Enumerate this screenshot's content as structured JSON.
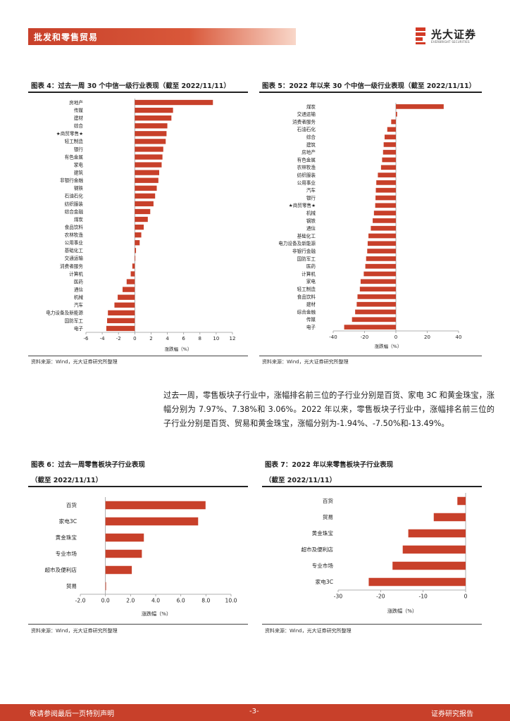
{
  "header": {
    "section_title": "批发和零售贸易",
    "logo_name": "光大证券",
    "logo_sub": "EVERBRIGHT SECURITIES"
  },
  "colors": {
    "accent": "#c8402a",
    "bar": "#c8402a",
    "text": "#222222"
  },
  "fig4": {
    "title": "图表 4：过去一周 30 个中信一级行业表现（截至 2022/11/11）",
    "source": "资料来源：Wind，光大证券研究所整理"
  },
  "fig5": {
    "title": "图表 5：2022 年以来 30 个中信一级行业表现（截至 2022/11/11）",
    "source": "资料来源：Wind，光大证券研究所整理"
  },
  "fig6": {
    "title": "图表 6：过去一周零售板块子行业表现",
    "subtitle": "（截至 2022/11/11）",
    "source": "资料来源：Wind，光大证券研究所整理"
  },
  "fig7": {
    "title": "图表 7：2022 年以来零售板块子行业表现",
    "subtitle": "（截至 2022/11/11）",
    "source": "资料来源：Wind，光大证券研究所整理"
  },
  "body": {
    "paragraph": "过去一周，零售板块子行业中，涨幅排名前三位的子行业分别是百货、家电 3C 和黄金珠宝，涨幅分别为 7.97%、7.38%和 3.06%。2022 年以来，零售板块子行业中，涨幅排名前三位的子行业分别是百货、贸易和黄金珠宝，涨幅分别为-1.94%、-7.50%和-13.49%。"
  },
  "footer": {
    "disclaimer": "敬请参阅最后一页特别声明",
    "page": "-3-",
    "report_type": "证券研究报告"
  },
  "chart_data": [
    {
      "type": "bar",
      "orientation": "horizontal",
      "title": "过去一周 30 个中信一级行业表现",
      "xlabel": "涨跌幅（%）",
      "xlim": [
        -6,
        12
      ],
      "ticks": [
        -6,
        -4,
        -2,
        0,
        2,
        4,
        6,
        8,
        10,
        12
      ],
      "tick_labels": [
        "-6",
        "-4",
        "-2",
        "0",
        "2",
        "4",
        "6",
        "8",
        "10",
        "12"
      ],
      "categories": [
        "房地产",
        "传媒",
        "建材",
        "综合",
        "★商贸零售★",
        "轻工制造",
        "银行",
        "有色金属",
        "家电",
        "建筑",
        "非银行金融",
        "钢铁",
        "石油石化",
        "纺织服装",
        "综合金融",
        "煤炭",
        "食品饮料",
        "农林牧渔",
        "公用事业",
        "基础化工",
        "交通运输",
        "消费者服务",
        "计算机",
        "医药",
        "通信",
        "机械",
        "汽车",
        "电力设备及新能源",
        "国防军工",
        "电子"
      ],
      "values": [
        9.6,
        4.7,
        4.5,
        4.0,
        3.9,
        3.8,
        3.5,
        3.4,
        3.3,
        3.0,
        2.9,
        2.7,
        2.5,
        2.3,
        1.9,
        1.6,
        1.1,
        0.8,
        0.6,
        0.15,
        0.05,
        -0.3,
        -0.5,
        -1.0,
        -1.5,
        -2.1,
        -2.5,
        -3.3,
        -3.4,
        -3.5
      ]
    },
    {
      "type": "bar",
      "orientation": "horizontal",
      "title": "2022 年以来 30 个中信一级行业表现",
      "xlabel": "涨跌幅（%）",
      "xlim": [
        -40,
        40
      ],
      "ticks": [
        -40,
        -20,
        0,
        20,
        40
      ],
      "tick_labels": [
        "-40",
        "-20",
        "0",
        "20",
        "40"
      ],
      "categories": [
        "煤炭",
        "交通运输",
        "消费者服务",
        "石油石化",
        "综合",
        "建筑",
        "房地产",
        "有色金属",
        "农林牧渔",
        "纺织服装",
        "公用事业",
        "汽车",
        "银行",
        "★商贸零售★",
        "机械",
        "钢铁",
        "通信",
        "基础化工",
        "电力设备及新能源",
        "非银行金融",
        "国防军工",
        "医药",
        "计算机",
        "家电",
        "轻工制造",
        "食品饮料",
        "建材",
        "综合金融",
        "传媒",
        "电子"
      ],
      "values": [
        30.5,
        0.8,
        -3.0,
        -5.5,
        -7.2,
        -7.8,
        -8.2,
        -8.8,
        -9.5,
        -11.5,
        -12.5,
        -12.8,
        -13.0,
        -13.2,
        -14.0,
        -14.8,
        -16.0,
        -17.5,
        -18.0,
        -18.3,
        -19.0,
        -19.5,
        -20.5,
        -22.5,
        -23.0,
        -24.5,
        -25.0,
        -26.0,
        -28.0,
        -33.0
      ]
    },
    {
      "type": "bar",
      "orientation": "horizontal",
      "title": "过去一周零售板块子行业表现",
      "xlabel": "涨跌幅（%）",
      "xlim": [
        -2,
        10
      ],
      "ticks": [
        -2,
        0,
        2,
        4,
        6,
        8,
        10
      ],
      "tick_labels": [
        "-2.0",
        "0.0",
        "2.0",
        "4.0",
        "6.0",
        "8.0",
        "10.0"
      ],
      "categories": [
        "百货",
        "家电3C",
        "黄金珠宝",
        "专业市场",
        "超市及便利店",
        "贸易"
      ],
      "values": [
        7.97,
        7.38,
        3.06,
        2.9,
        2.1,
        0.05
      ]
    },
    {
      "type": "bar",
      "orientation": "horizontal",
      "title": "2022 年以来零售板块子行业表现",
      "xlabel": "涨跌幅（%）",
      "xlim": [
        -30,
        0
      ],
      "ticks": [
        -30,
        -20,
        -10,
        0
      ],
      "tick_labels": [
        "-30",
        "-20",
        "-10",
        "0"
      ],
      "categories": [
        "百货",
        "贸易",
        "黄金珠宝",
        "超市及便利店",
        "专业市场",
        "家电3C"
      ],
      "values": [
        -1.94,
        -7.5,
        -13.49,
        -14.8,
        -17.2,
        -22.8
      ]
    }
  ]
}
